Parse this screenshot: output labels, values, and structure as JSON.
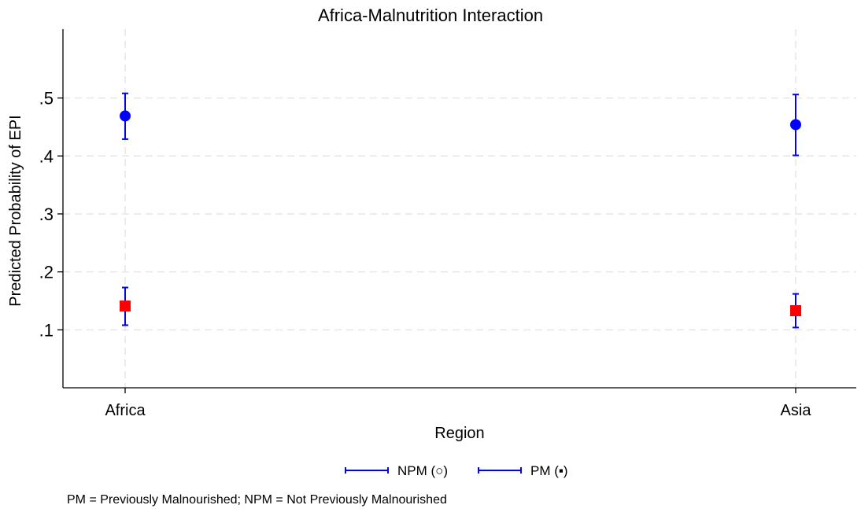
{
  "chart_data": {
    "type": "scatter",
    "title": "Africa-Malnutrition Interaction",
    "xlabel": "Region",
    "ylabel": "Predicted Probability of EPI",
    "categories": [
      "Africa",
      "Asia"
    ],
    "ylim": [
      0,
      0.6
    ],
    "yticks": [
      0.1,
      0.2,
      0.3,
      0.4,
      0.5
    ],
    "ytick_labels": [
      ".1",
      ".2",
      ".3",
      ".4",
      ".5"
    ],
    "grid": true,
    "series": [
      {
        "name": "NPM (○)",
        "marker": "circle",
        "color": "#0000ff",
        "values": [
          0.469,
          0.454
        ],
        "lower": [
          0.429,
          0.401
        ],
        "upper": [
          0.508,
          0.506
        ]
      },
      {
        "name": "PM (▪)",
        "marker": "square",
        "color": "#ff0000",
        "error_color": "#0000ff",
        "values": [
          0.141,
          0.133
        ],
        "lower": [
          0.108,
          0.104
        ],
        "upper": [
          0.173,
          0.162
        ]
      }
    ],
    "legend": {
      "position": "bottom-center",
      "items": [
        "NPM (○)",
        "PM (▪)"
      ]
    },
    "note": "PM = Previously Malnourished; NPM = Not Previously Malnourished"
  }
}
